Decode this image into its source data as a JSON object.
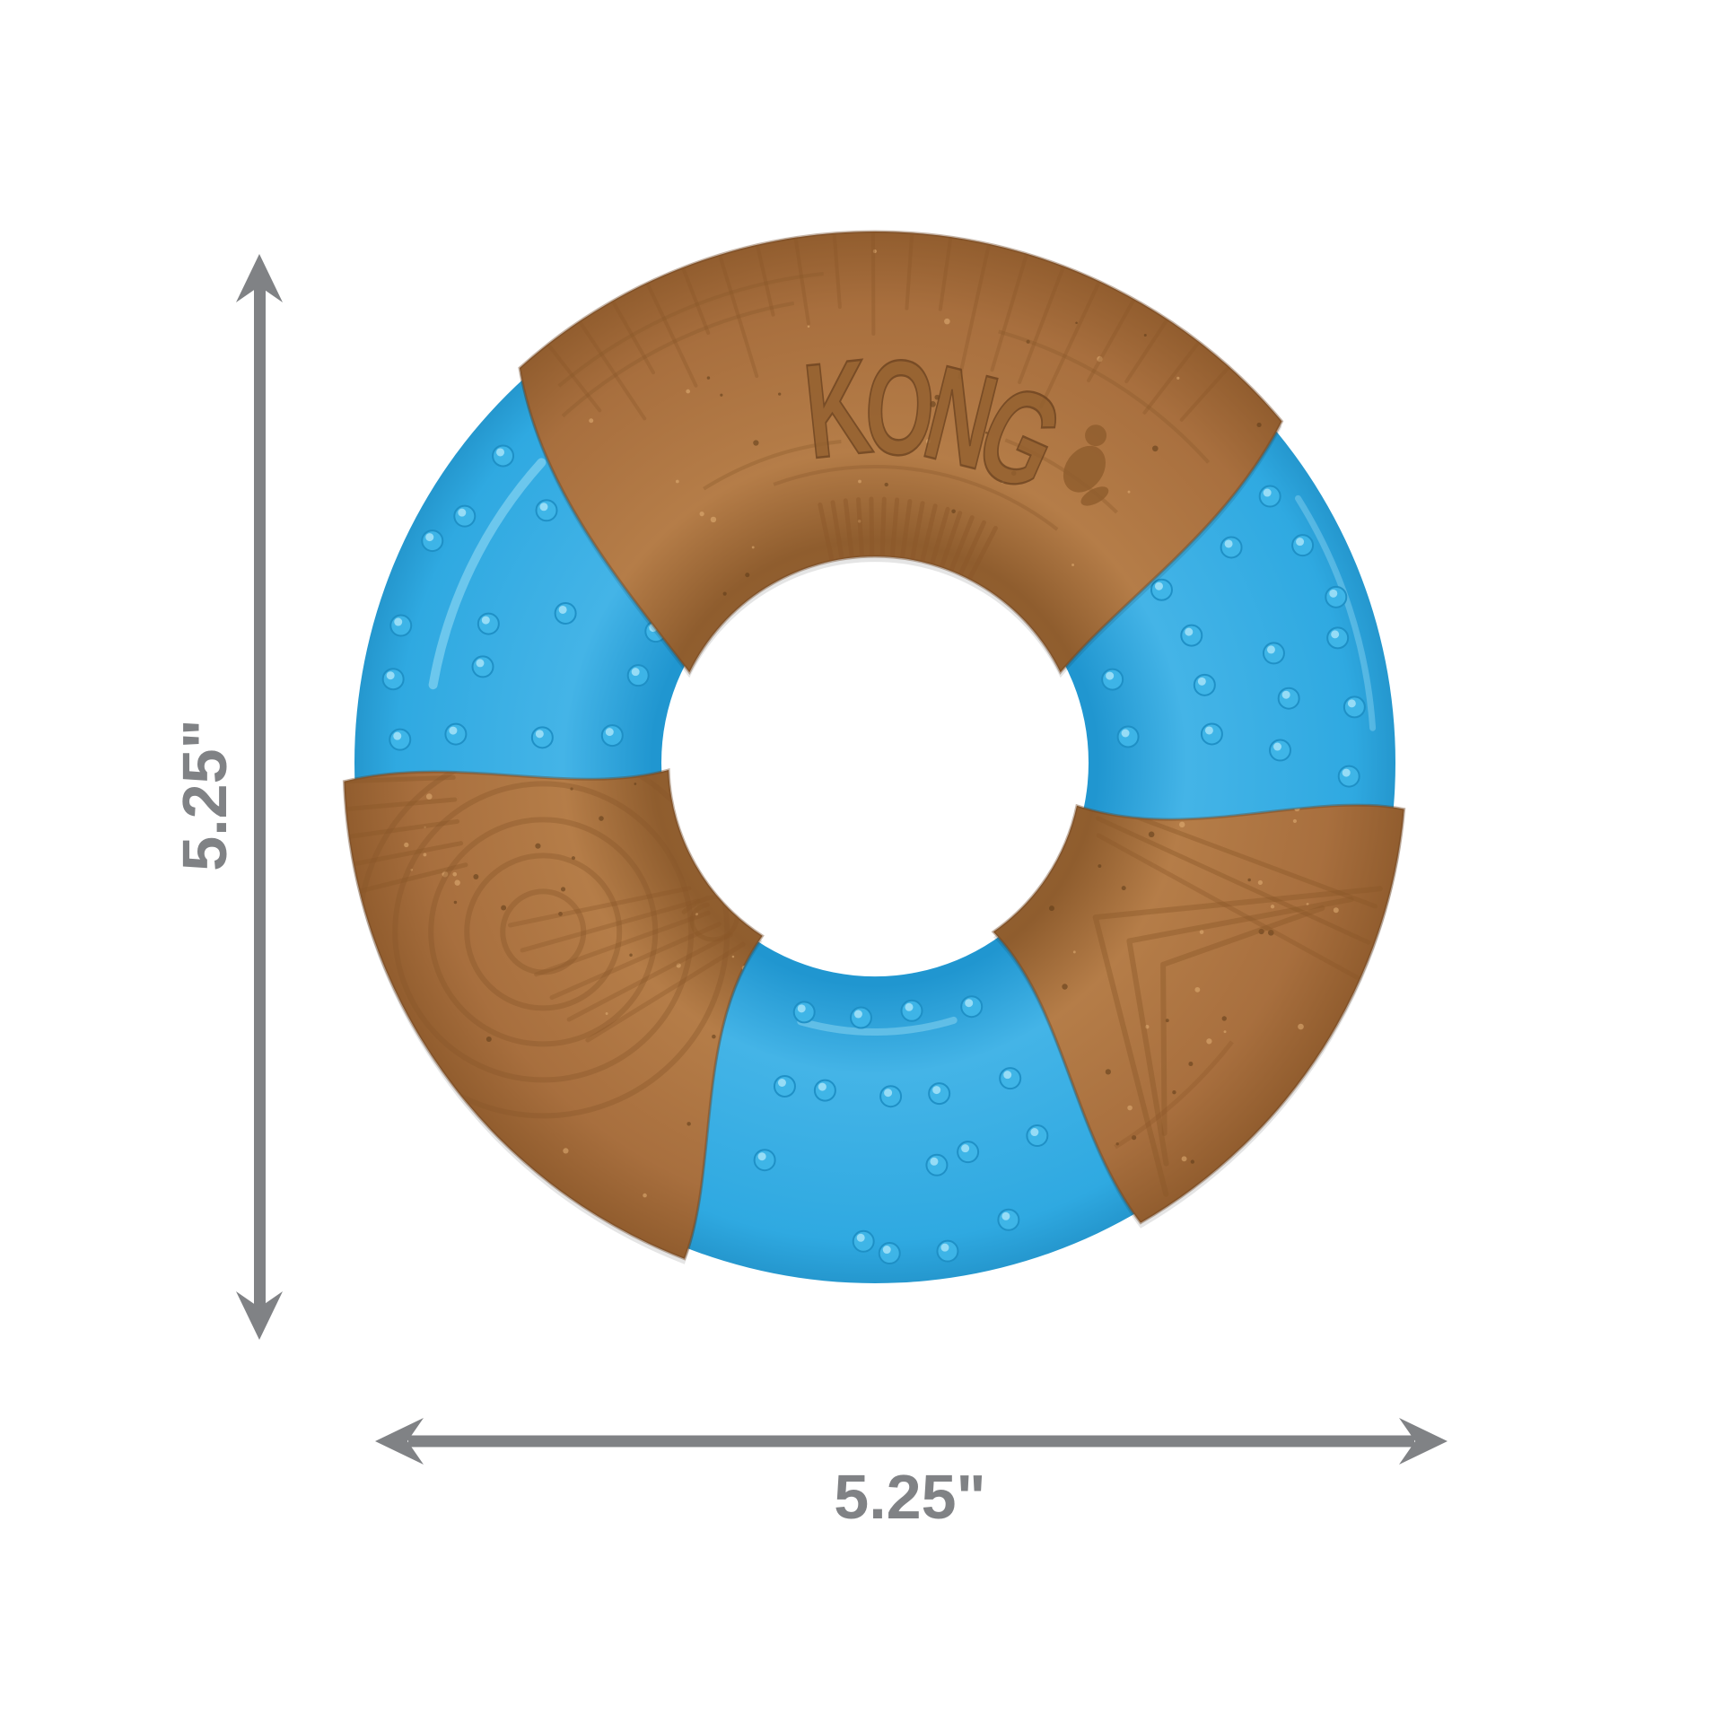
{
  "product": {
    "logo_text": "KONG",
    "logo_mark_icon": "gorilla-silhouette",
    "colors": {
      "bamboo_base": "#A86F3E",
      "bamboo_dark": "#6B421F",
      "bamboo_groove": "#8A5729",
      "bamboo_light": "#E2B077",
      "bamboo_fleck_dark": "#5C3A18",
      "rubber_base": "#2FA9E1",
      "rubber_dark": "#1E8FC5",
      "rubber_bump": "#3FB6E8",
      "rubber_highlight": "#A6E3F8"
    }
  },
  "dimensions": {
    "arrow_color": "#808285",
    "height": {
      "label": "5.25\""
    },
    "width": {
      "label": "5.25\""
    }
  },
  "background": "#FFFFFF"
}
